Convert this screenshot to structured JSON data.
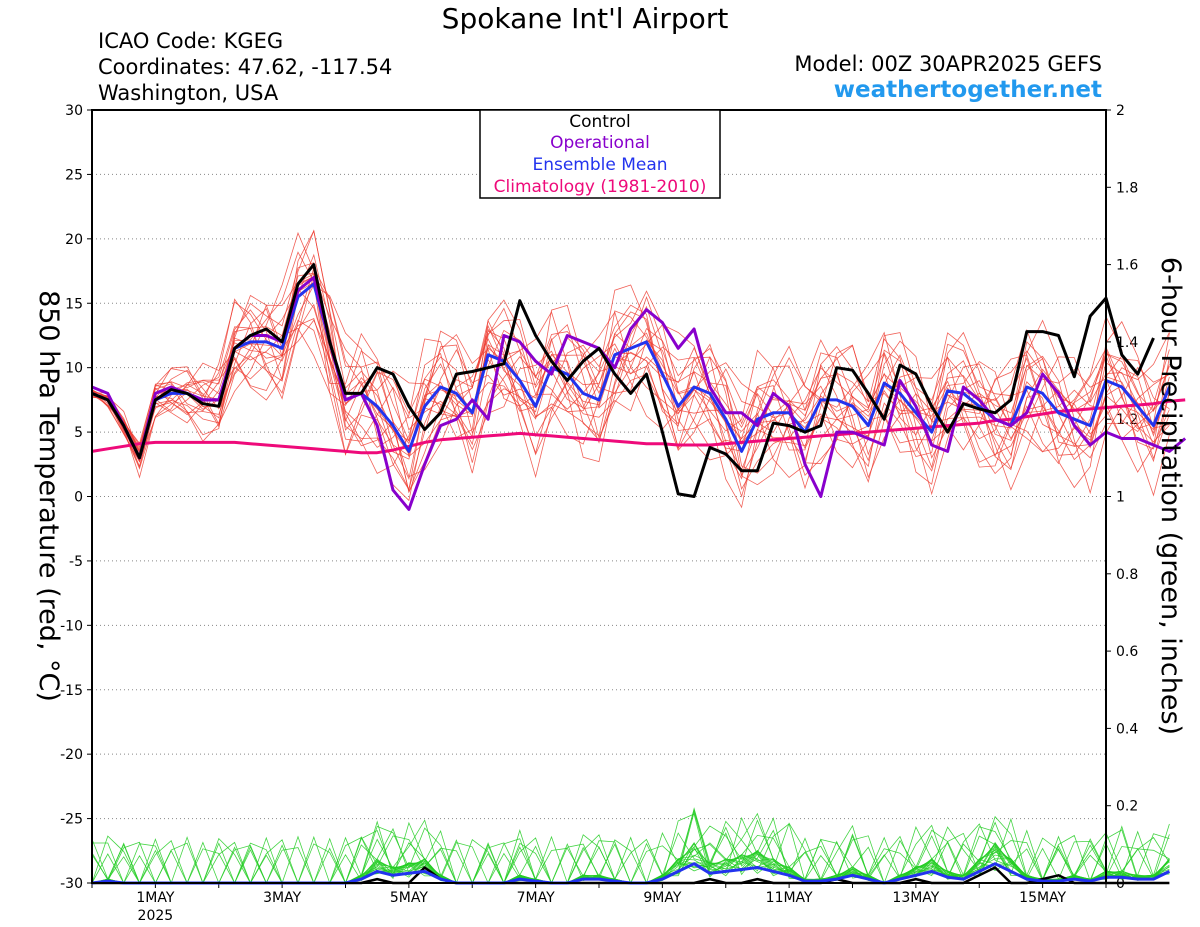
{
  "header": {
    "title": "Spokane Int'l Airport",
    "icao": "ICAO Code: KGEG",
    "coords": "Coordinates: 47.62, -117.54",
    "location": "Washington, USA",
    "model": "Model: 00Z 30APR2025 GEFS",
    "site": "weathertogether.net"
  },
  "colors": {
    "members": "#ee3b30",
    "control": "#000000",
    "operational": "#8800cc",
    "mean": "#2233ee",
    "climatology": "#ee0a7a",
    "precip_members": "#22cc22",
    "site": "#2299ee"
  },
  "chart_data": {
    "type": "line",
    "ylabel_left": "850 hPa Temperature (red, °C)",
    "ylabel_right": "6-hour Precipitation (green, inches)",
    "ylim_left": [
      -30,
      30
    ],
    "ylim_right": [
      0,
      2
    ],
    "yticks_left": [
      "30",
      "25",
      "20",
      "15",
      "10",
      "5",
      "0",
      "-5",
      "-10",
      "-15",
      "-20",
      "-25",
      "-30"
    ],
    "yticks_right": [
      "2",
      "1.8",
      "1.6",
      "1.4",
      "1.2",
      "1",
      "0.8",
      "0.6",
      "0.4",
      "0.2",
      "0"
    ],
    "xticks": [
      {
        "label": "1MAY",
        "sub": "2025",
        "day": 1
      },
      {
        "label": "3MAY",
        "day": 3
      },
      {
        "label": "5MAY",
        "day": 5
      },
      {
        "label": "7MAY",
        "day": 7
      },
      {
        "label": "9MAY",
        "day": 9
      },
      {
        "label": "11MAY",
        "day": 11
      },
      {
        "label": "13MAY",
        "day": 13
      },
      {
        "label": "15MAY",
        "day": 15
      }
    ],
    "x_start": "2025-04-30 00Z",
    "step_hours": 6,
    "x_range_days": [
      0,
      16
    ],
    "grid": "horizontal dotted",
    "legend": {
      "position": "top-center",
      "entries": [
        "Control",
        "Operational",
        "Ensemble Mean",
        "Climatology (1981-2010)"
      ]
    },
    "series": [
      {
        "name": "Control",
        "values": [
          8,
          7.5,
          5.5,
          3,
          7.5,
          8.3,
          8,
          7.2,
          7,
          11.5,
          12.5,
          13,
          12,
          16.5,
          18,
          12,
          8,
          8,
          10,
          9.5,
          7,
          5.2,
          6.5,
          9.5,
          9.7,
          10,
          10.3,
          15.2,
          12.5,
          10.5,
          9,
          10.5,
          11.5,
          9.5,
          8,
          9.5,
          5,
          0.2,
          0,
          3.8,
          3.3,
          2,
          2,
          5.7,
          5.5,
          5,
          5.5,
          10,
          9.8,
          8,
          6,
          10.2,
          9.5,
          7,
          5,
          7.2,
          6.8,
          6.5,
          7.5,
          12.8,
          12.8,
          12.5,
          9.3,
          14,
          15.4,
          11,
          9.5,
          12.3
        ]
      },
      {
        "name": "Operational",
        "values": [
          8.5,
          8,
          5.5,
          3,
          8,
          8.5,
          8,
          7.5,
          7.5,
          11.5,
          12.5,
          12.5,
          12,
          16,
          17,
          12,
          7.5,
          8,
          5.5,
          0.5,
          -1,
          2.5,
          5.5,
          6,
          7.5,
          6,
          12.5,
          12,
          10.5,
          9.5,
          12.5,
          12,
          11.5,
          10,
          13,
          14.5,
          13.5,
          11.5,
          13,
          8.5,
          6.5,
          6.5,
          5.5,
          8,
          7,
          2.5,
          0,
          5,
          5,
          4.5,
          4,
          9,
          7,
          4,
          3.5,
          8.5,
          7.5,
          6,
          5.5,
          6.5,
          9.5,
          8,
          5.5,
          4,
          5,
          4.5,
          4.5,
          4,
          3.5,
          4.5
        ]
      },
      {
        "name": "Ensemble Mean",
        "values": [
          8,
          7.5,
          5.5,
          3,
          7.5,
          8,
          8,
          7.5,
          7.5,
          11.5,
          12,
          12,
          11.5,
          15.5,
          16.5,
          12,
          7.5,
          8,
          7,
          5.5,
          3.5,
          7,
          8.5,
          8,
          6.5,
          11,
          10.5,
          9,
          7,
          10,
          9.5,
          8,
          7.5,
          11,
          11.5,
          12,
          9.5,
          7,
          8.5,
          8,
          6,
          3.5,
          6,
          6.5,
          6.5,
          5,
          7.5,
          7.5,
          7,
          5.5,
          8.8,
          8,
          6.5,
          5,
          8.2,
          8,
          7,
          6,
          5.5,
          8.5,
          8,
          6.5,
          6,
          5.5,
          9,
          8.5,
          7,
          5.5,
          8.5
        ]
      },
      {
        "name": "Climatology (1981-2010)",
        "values": [
          3.5,
          3.7,
          3.9,
          4.1,
          4.2,
          4.2,
          4.2,
          4.2,
          4.2,
          4.2,
          4.1,
          4.0,
          3.9,
          3.8,
          3.7,
          3.6,
          3.5,
          3.4,
          3.4,
          3.6,
          3.9,
          4.2,
          4.4,
          4.5,
          4.6,
          4.7,
          4.8,
          4.9,
          4.8,
          4.7,
          4.6,
          4.5,
          4.4,
          4.3,
          4.2,
          4.1,
          4.1,
          4.0,
          4.0,
          4.0,
          4.1,
          4.2,
          4.3,
          4.4,
          4.5,
          4.6,
          4.7,
          4.8,
          4.9,
          5.0,
          5.1,
          5.2,
          5.3,
          5.4,
          5.5,
          5.6,
          5.7,
          5.9,
          6.0,
          6.2,
          6.4,
          6.6,
          6.7,
          6.8,
          6.9,
          7.0,
          7.1,
          7.2,
          7.4,
          7.5
        ]
      },
      {
        "name": "Control precipitation",
        "axis": "right",
        "values": [
          0,
          0,
          0,
          0,
          0,
          0,
          0,
          0,
          0,
          0,
          0,
          0,
          0,
          0,
          0,
          0,
          0,
          0,
          0.01,
          0,
          0,
          0.04,
          0.01,
          0,
          0,
          0,
          0,
          0,
          0,
          0,
          0,
          0,
          0,
          0,
          0,
          0,
          0,
          0,
          0,
          0.01,
          0,
          0,
          0.01,
          0,
          0,
          0,
          0,
          0.01,
          0,
          0,
          0,
          0,
          0.01,
          0,
          0,
          0,
          0.02,
          0.04,
          0,
          0,
          0.01,
          0.02,
          0,
          0,
          0,
          0,
          0,
          0,
          0
        ]
      },
      {
        "name": "Mean precipitation",
        "axis": "right",
        "values": [
          0,
          0.005,
          0,
          0,
          0,
          0,
          0,
          0,
          0,
          0,
          0,
          0,
          0,
          0,
          0,
          0,
          0,
          0.01,
          0.03,
          0.02,
          0.025,
          0.03,
          0.01,
          0,
          0,
          0,
          0,
          0.01,
          0.005,
          0,
          0,
          0.01,
          0.01,
          0.005,
          0,
          0,
          0.01,
          0.03,
          0.05,
          0.025,
          0.03,
          0.035,
          0.04,
          0.03,
          0.02,
          0.005,
          0.005,
          0.01,
          0.02,
          0.01,
          0,
          0.01,
          0.02,
          0.03,
          0.015,
          0.01,
          0.03,
          0.05,
          0.03,
          0.01,
          0.005,
          0.005,
          0.01,
          0.005,
          0.015,
          0.015,
          0.01,
          0.01,
          0.03
        ]
      }
    ]
  }
}
